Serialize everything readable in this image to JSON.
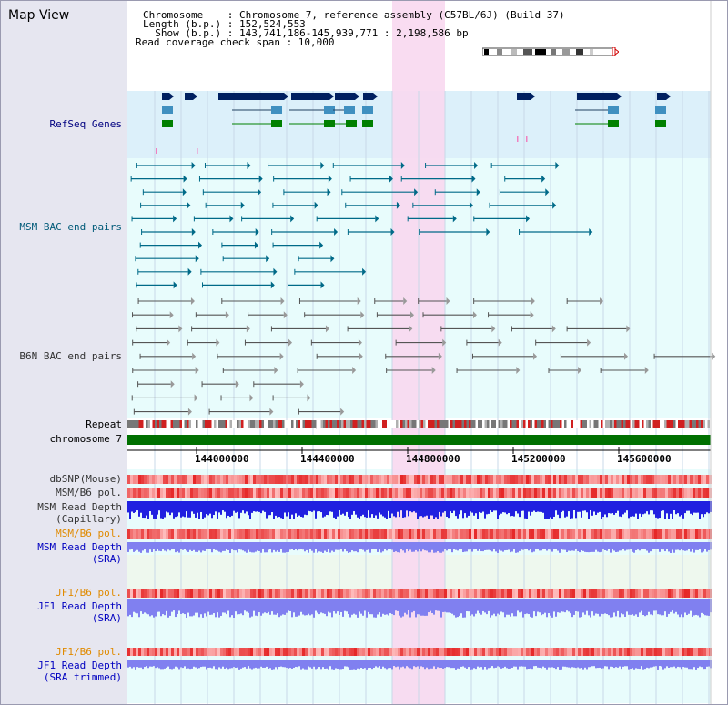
{
  "title": "Map View",
  "header": {
    "lines": [
      "Chromosome    : Chromosome 7, reference assembly (C57BL/6J) (Build 37)",
      "Length (b.p.) : 152,524,553",
      "  Show (b.p.) : 143,741,186-145,939,771 : 2,198,586 bp",
      "Read coverage check span : 10,000"
    ]
  },
  "tracks": [
    {
      "label": "RefSeq Genes",
      "color": "#000080"
    },
    {
      "label": "MSM BAC end pairs",
      "color": "#005a78"
    },
    {
      "label": "B6N BAC end pairs",
      "color": "#333333"
    },
    {
      "label": "Repeat",
      "color": "#000000"
    },
    {
      "label": "chromosome 7",
      "color": "#000000"
    }
  ],
  "axis": {
    "ticks": [
      "144000000",
      "144400000",
      "144800000",
      "145200000",
      "145600000"
    ]
  },
  "data_tracks": [
    {
      "label": "dbSNP(Mouse)",
      "color": "#333333"
    },
    {
      "label": "MSM/B6 pol.",
      "color": "#333333"
    },
    {
      "label": "MSM Read Depth",
      "sub": "(Capillary)",
      "color": "#333333"
    },
    {
      "label": "MSM/B6 pol.",
      "color": "#e08a00"
    },
    {
      "label": "MSM Read Depth",
      "sub": "(SRA)",
      "color": "#0000c0"
    },
    {
      "label": "JF1/B6 pol.",
      "color": "#e08a00"
    },
    {
      "label": "JF1 Read Depth",
      "sub": "(SRA)",
      "color": "#0000c0"
    },
    {
      "label": "JF1/B6 pol.",
      "color": "#e08a00"
    },
    {
      "label": "JF1 Read Depth",
      "sub": "(SRA trimmed)",
      "color": "#0000c0"
    }
  ],
  "colors": {
    "highlight": "#f8d8f0",
    "genes_bg": "#dcf0fa",
    "tracks_bg": "#e8fcfc",
    "chrom_bar": "#007000",
    "gene_dark": "#002060",
    "gene_mid": "#4090c0",
    "gene_green": "#008000",
    "msm_pair": "#006a88",
    "b6n_pair": "#555555",
    "snp": "#f06060",
    "depth_capillary": "#2020e0",
    "depth_sra": "#8080f0"
  }
}
